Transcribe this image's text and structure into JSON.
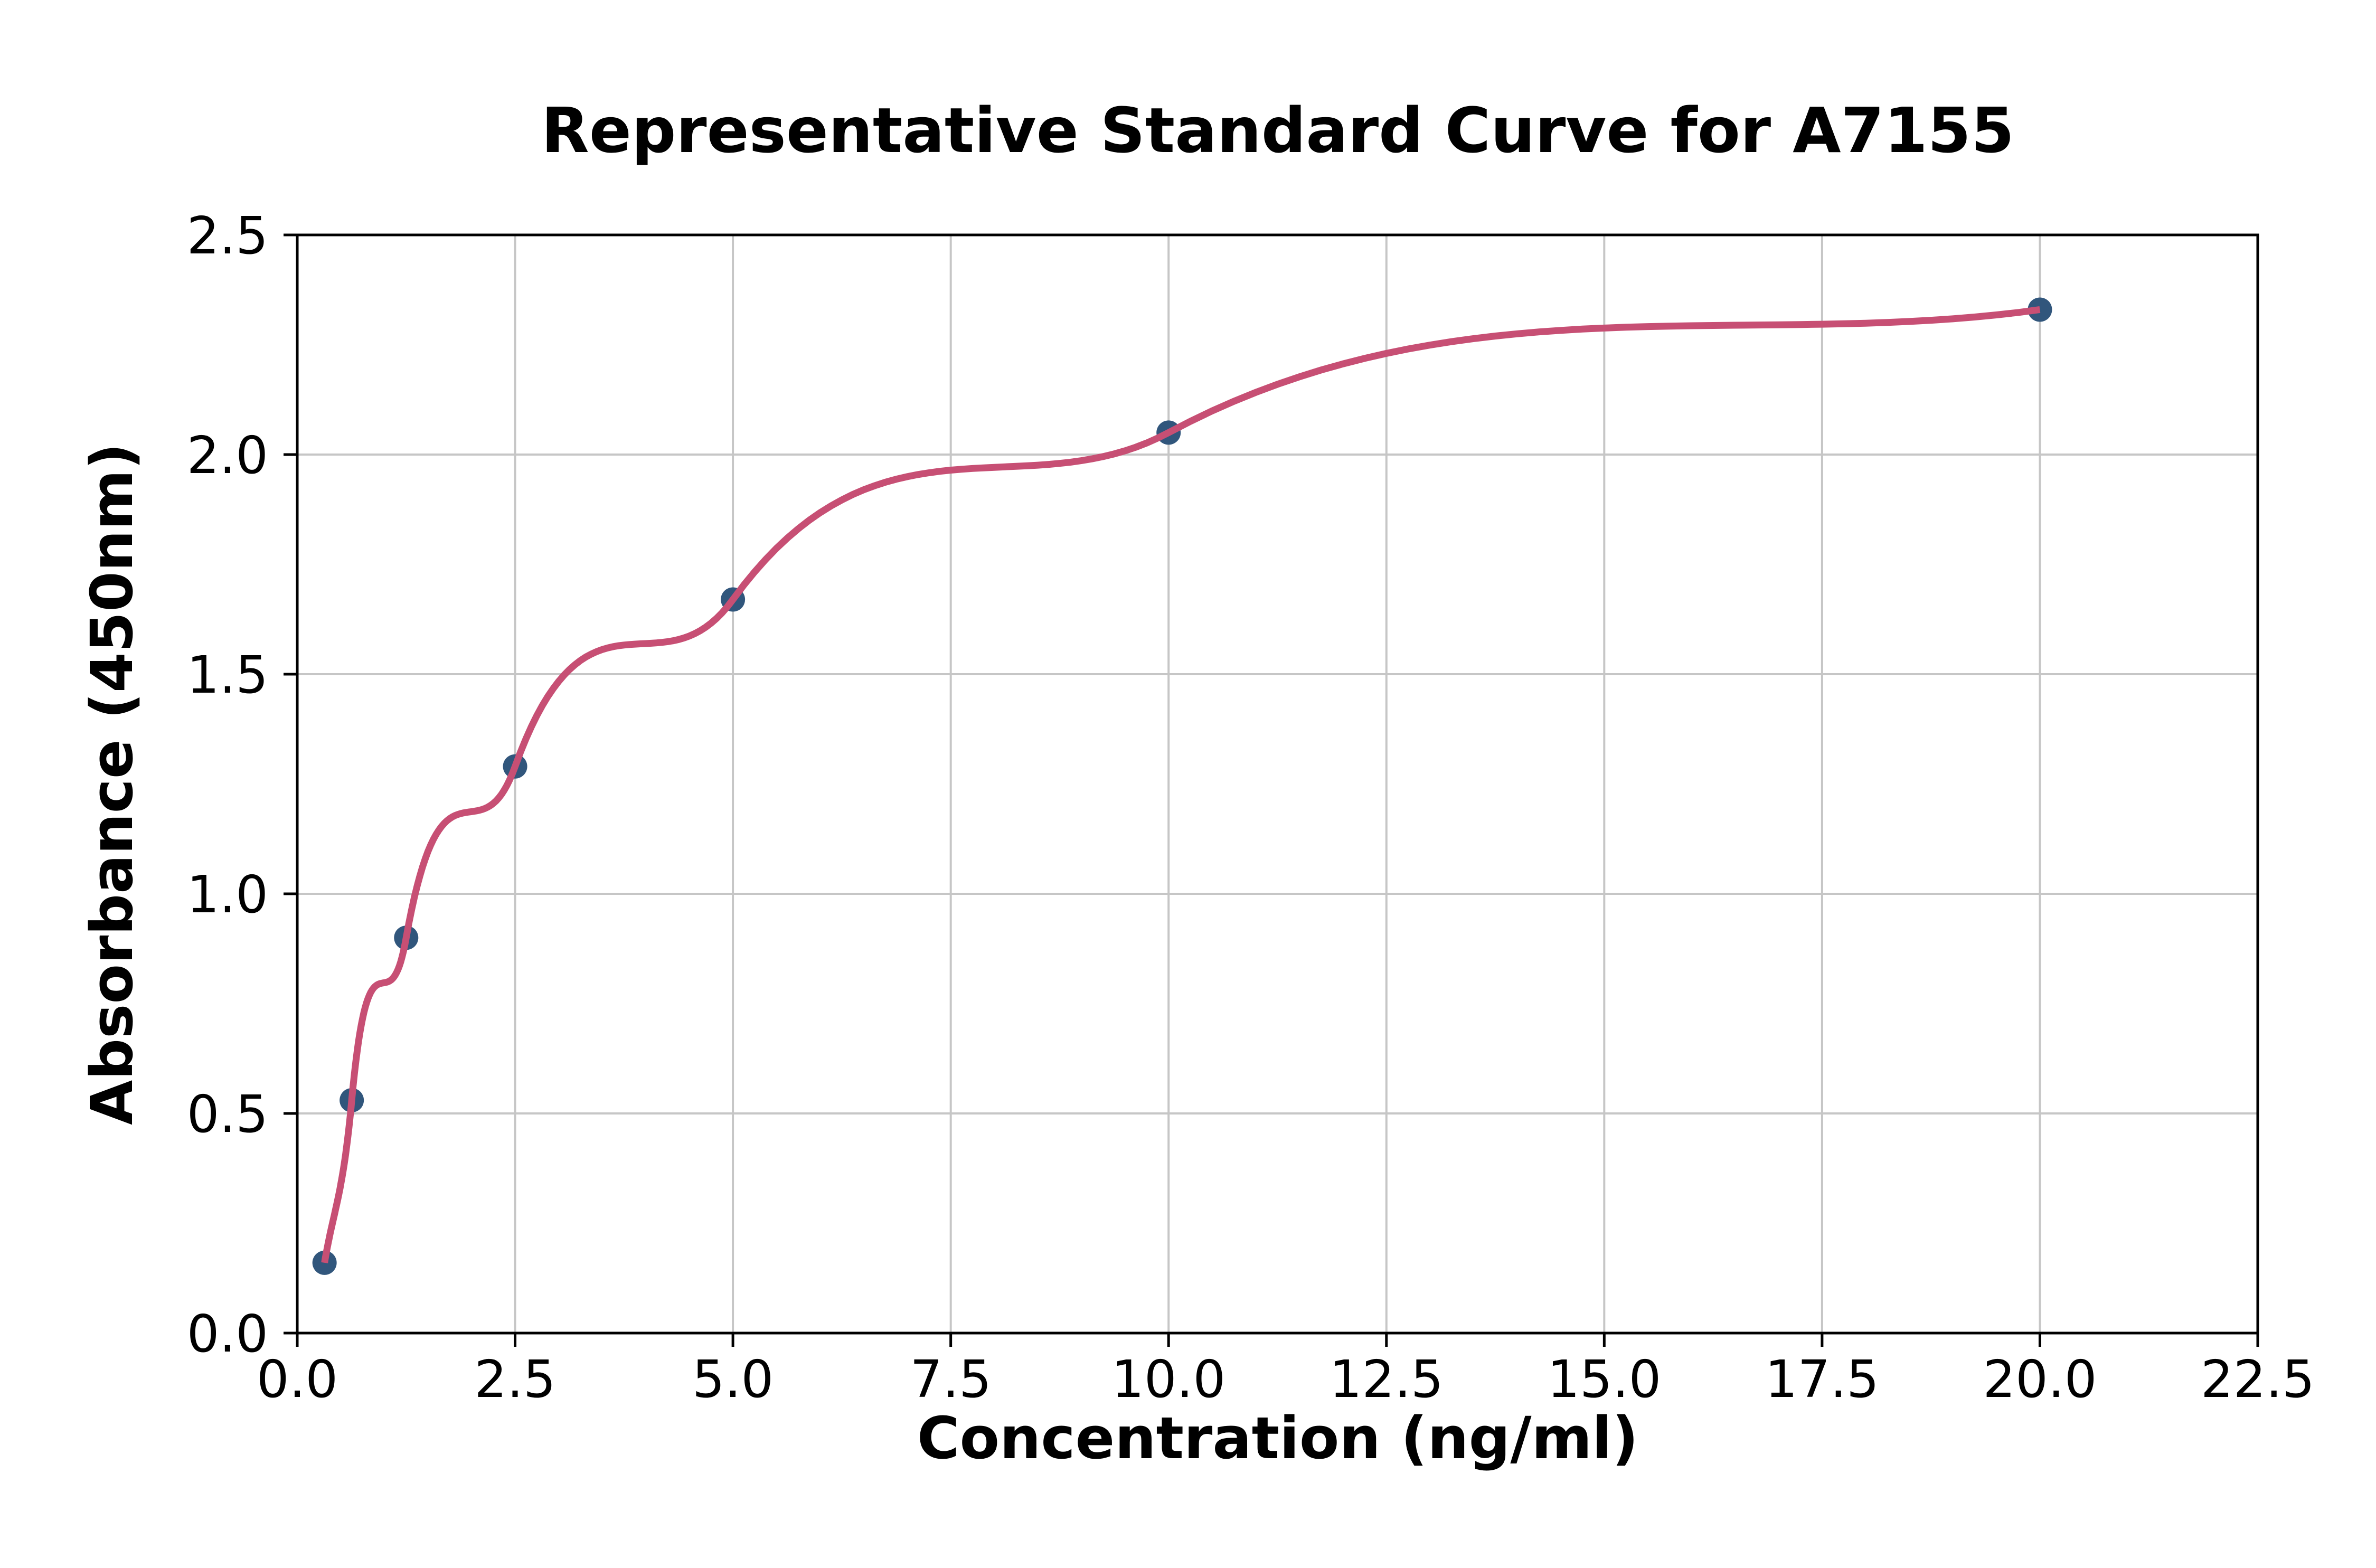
{
  "page": {
    "background": "#ffffff"
  },
  "chart_data": {
    "type": "scatter",
    "title": "Representative Standard Curve for A7155",
    "xlabel": "Concentration (ng/ml)",
    "ylabel": "Absorbance (450nm)",
    "x": [
      0.313,
      0.625,
      1.25,
      2.5,
      5.0,
      10.0,
      20.0
    ],
    "y": [
      0.16,
      0.53,
      0.9,
      1.29,
      1.67,
      2.05,
      2.33
    ],
    "curve": "smooth saturating fit through all points, from first point to last point",
    "xlim": [
      0,
      22.5
    ],
    "ylim": [
      0,
      2.5
    ],
    "xticks": [
      0.0,
      2.5,
      5.0,
      7.5,
      10.0,
      12.5,
      15.0,
      17.5,
      20.0,
      22.5
    ],
    "xtick_labels": [
      "0.0",
      "2.5",
      "5.0",
      "7.5",
      "10.0",
      "12.5",
      "15.0",
      "17.5",
      "20.0",
      "22.5"
    ],
    "yticks": [
      0.0,
      0.5,
      1.0,
      1.5,
      2.0,
      2.5
    ],
    "ytick_labels": [
      "0.0",
      "0.5",
      "1.0",
      "1.5",
      "2.0",
      "2.5"
    ],
    "grid": true,
    "legend_position": "none",
    "colors": {
      "curve": "#c74f74",
      "points": "#31567c",
      "grid": "#c6c6c6",
      "spine": "#000000",
      "text": "#000000",
      "background": "#ffffff"
    }
  }
}
